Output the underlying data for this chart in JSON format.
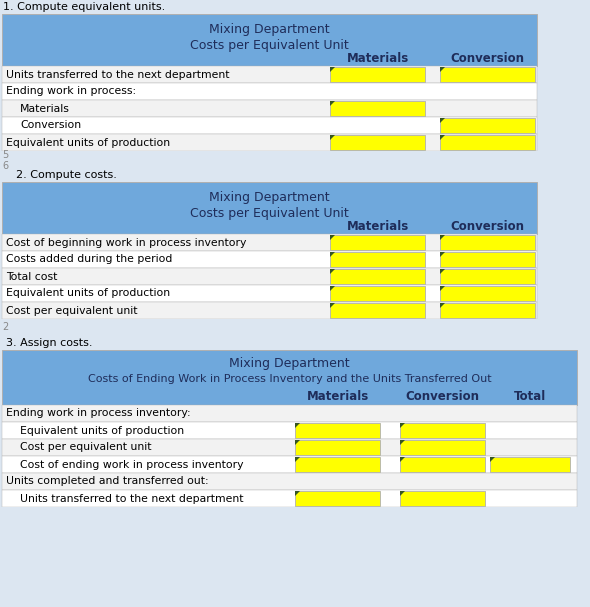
{
  "bg_color": "#dce6f1",
  "blue_header": "#6fa8dc",
  "yellow": "#ffff00",
  "white": "#ffffff",
  "row_light": "#f2f2f2",
  "dark_text": "#1f2d5a",
  "grid_color": "#b0b0b0",
  "tri_color": "#375623",
  "section1": {
    "label": "1. Compute equivalent units.",
    "title1": "Mixing Department",
    "title2": "Costs per Equivalent Unit",
    "rows": [
      {
        "label": "Units transferred to the next department",
        "indent": 0,
        "mat": true,
        "conv": true
      },
      {
        "label": "Ending work in process:",
        "indent": 0,
        "mat": false,
        "conv": false
      },
      {
        "label": "Materials",
        "indent": 1,
        "mat": true,
        "conv": false
      },
      {
        "label": "Conversion",
        "indent": 1,
        "mat": false,
        "conv": true
      },
      {
        "label": "Equivalent units of production",
        "indent": 0,
        "mat": true,
        "conv": true
      }
    ]
  },
  "section2": {
    "label": "2. Compute costs.",
    "title1": "Mixing Department",
    "title2": "Costs per Equivalent Unit",
    "rows": [
      {
        "label": "Cost of beginning work in process inventory",
        "indent": 0,
        "mat": true,
        "conv": true
      },
      {
        "label": "Costs added during the period",
        "indent": 0,
        "mat": true,
        "conv": true
      },
      {
        "label": "Total cost",
        "indent": 0,
        "mat": true,
        "conv": true
      },
      {
        "label": "Equivalent units of production",
        "indent": 0,
        "mat": true,
        "conv": true
      },
      {
        "label": "Cost per equivalent unit",
        "indent": 0,
        "mat": true,
        "conv": true
      }
    ]
  },
  "section3": {
    "label": "3. Assign costs.",
    "title1": "Mixing Department",
    "title2": "Costs of Ending Work in Process Inventory and the Units Transferred Out",
    "rows": [
      {
        "label": "Ending work in process inventory:",
        "indent": 0,
        "mat": false,
        "conv": false,
        "tot": false
      },
      {
        "label": "Equivalent units of production",
        "indent": 1,
        "mat": true,
        "conv": true,
        "tot": false
      },
      {
        "label": "Cost per equivalent unit",
        "indent": 1,
        "mat": true,
        "conv": true,
        "tot": false
      },
      {
        "label": "Cost of ending work in process inventory",
        "indent": 1,
        "mat": true,
        "conv": true,
        "tot": true
      },
      {
        "label": "Units completed and transferred out:",
        "indent": 0,
        "mat": false,
        "conv": false,
        "tot": false
      },
      {
        "label": "Units transferred to the next department",
        "indent": 1,
        "mat": true,
        "conv": true,
        "tot": false
      }
    ]
  }
}
